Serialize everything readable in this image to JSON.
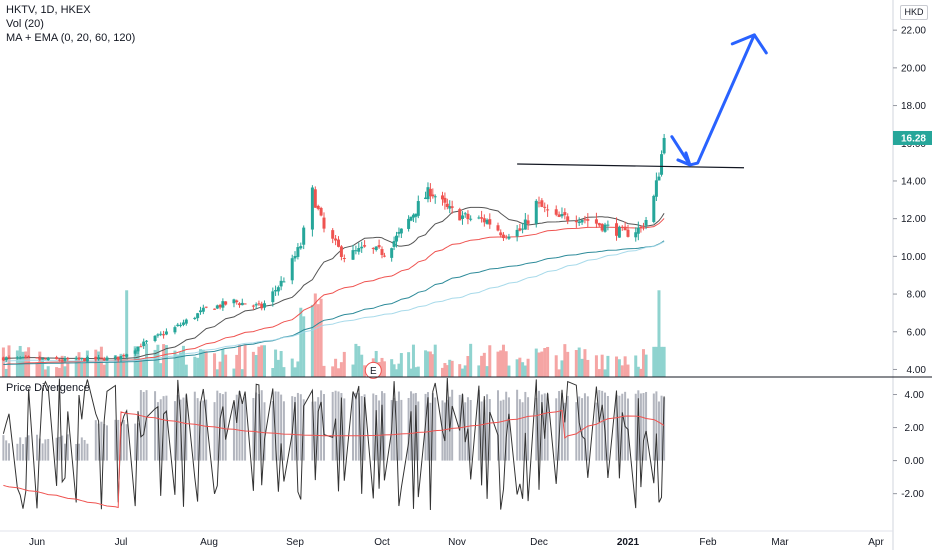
{
  "header": {
    "symbol_line": "HKTV, 1D, HKEX",
    "volume_line": "Vol (20)",
    "ma_line": "MA + EMA (0, 20, 60, 120)",
    "currency": "HKD"
  },
  "oscillator": {
    "title": "Price Divergence"
  },
  "colors": {
    "up": "#26a69a",
    "down": "#ef5350",
    "vol_up": "#8fd3cf",
    "vol_down": "#f5a5a4",
    "ma20": "#555555",
    "ema60": "#ef5350",
    "ema120": "#2e8b9a",
    "ma_light": "#9fd6e8",
    "annotation": "#2962ff",
    "price_tag": "#26a69a",
    "osc_bar": "#b2b5be",
    "osc_line": "#333333",
    "osc_signal": "#ef5350"
  },
  "chart_data": {
    "type": "candlestick",
    "price_axis": {
      "range": [
        3.6,
        23.6
      ],
      "ticks": [
        "22.00",
        "20.00",
        "18.00",
        "16.00",
        "14.00",
        "12.00",
        "10.00",
        "8.00",
        "6.00",
        "4.00"
      ]
    },
    "oscillator_axis": {
      "range": [
        -4.2,
        5.0
      ],
      "ticks": [
        "4.00",
        "2.00",
        "0.00",
        "-2.00"
      ]
    },
    "x_axis": {
      "labels": [
        "Jun",
        "Jul",
        "Aug",
        "Sep",
        "Oct",
        "Nov",
        "Dec",
        "2021",
        "Feb",
        "Mar",
        "Apr"
      ],
      "bold": "2021"
    },
    "last_price": "16.28",
    "earnings_marker": "E",
    "horizontal_line": {
      "value": 14.75,
      "from": "2020-11-23",
      "to": "2021-02-15"
    },
    "arrow_path": [
      [
        "2021-01-18",
        16.35
      ],
      [
        "2021-01-25",
        14.85
      ],
      [
        "2021-01-28",
        14.95
      ],
      [
        "2021-02-19",
        21.75
      ]
    ],
    "ohlc_approx": [
      {
        "month": "Jun",
        "low": 4.2,
        "high": 5.0
      },
      {
        "month": "Jul",
        "low": 5.0,
        "high": 8.0
      },
      {
        "month": "Aug",
        "low": 6.5,
        "high": 10.5
      },
      {
        "month": "Sep",
        "low": 9.2,
        "high": 13.6
      },
      {
        "month": "Oct",
        "low": 10.0,
        "high": 13.7
      },
      {
        "month": "Nov",
        "low": 10.8,
        "high": 13.2
      },
      {
        "month": "Dec",
        "low": 10.8,
        "high": 12.3
      },
      {
        "month": "Jan",
        "low": 11.0,
        "high": 16.7
      }
    ]
  }
}
